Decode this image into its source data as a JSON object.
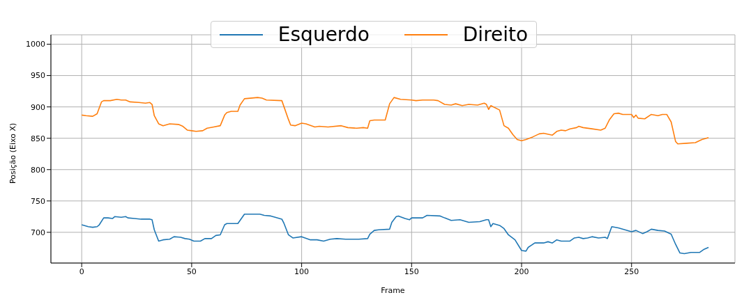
{
  "chart_data": {
    "type": "line",
    "xlabel": "Frame",
    "ylabel": "Posição (Eixo X)",
    "xlim": [
      -14,
      297
    ],
    "xticks": [
      0,
      50,
      100,
      150,
      200,
      250
    ],
    "ylim": [
      651,
      1015
    ],
    "yticks": [
      700,
      750,
      800,
      850,
      900,
      950,
      1000
    ],
    "grid": true,
    "legend": "top",
    "series": [
      {
        "name": "Esquerdo",
        "color": "#1f77b4",
        "x": [
          0,
          3,
          5,
          7,
          8,
          10,
          12,
          14,
          15,
          18,
          20,
          21,
          24,
          27,
          31,
          32,
          33,
          35,
          37,
          40,
          42,
          45,
          47,
          49,
          51,
          54,
          56,
          59,
          61,
          63,
          65,
          66,
          69,
          71,
          73,
          74,
          81,
          83,
          86,
          88,
          91,
          92,
          94,
          96,
          100,
          104,
          107,
          110,
          113,
          116,
          120,
          126,
          130,
          131,
          133,
          135,
          140,
          141,
          143,
          144,
          147,
          149,
          150,
          155,
          157,
          163,
          165,
          168,
          172,
          176,
          181,
          184,
          185,
          186,
          187,
          190,
          192,
          194,
          197,
          200,
          202,
          203,
          206,
          210,
          212,
          214,
          216,
          218,
          222,
          224,
          226,
          228,
          230,
          232,
          235,
          238,
          239,
          241,
          244,
          247,
          250,
          252,
          255,
          257,
          259,
          262,
          265,
          268,
          270,
          272,
          274,
          277,
          281,
          283,
          285
        ],
        "values": [
          712,
          709,
          708,
          709,
          712,
          723,
          723,
          722,
          725,
          724,
          725,
          723,
          722,
          721,
          721,
          720,
          704,
          686,
          688,
          689,
          693,
          692,
          690,
          689,
          686,
          686,
          690,
          690,
          695,
          696,
          712,
          714,
          714,
          714,
          724,
          729,
          729,
          727,
          726,
          724,
          721,
          714,
          696,
          691,
          693,
          688,
          688,
          686,
          689,
          690,
          689,
          689,
          690,
          697,
          703,
          704,
          705,
          716,
          725,
          726,
          722,
          720,
          723,
          723,
          727,
          726,
          723,
          719,
          720,
          716,
          717,
          720,
          720,
          709,
          714,
          711,
          706,
          696,
          688,
          671,
          670,
          676,
          683,
          683,
          685,
          683,
          688,
          686,
          686,
          691,
          692,
          690,
          691,
          693,
          691,
          692,
          690,
          709,
          707,
          704,
          701,
          703,
          698,
          701,
          705,
          703,
          702,
          697,
          681,
          667,
          666,
          668,
          668,
          673,
          676
        ]
      },
      {
        "name": "Direito",
        "color": "#ff7f0e",
        "x": [
          0,
          2,
          5,
          7,
          9,
          10,
          13,
          16,
          18,
          20,
          22,
          26,
          29,
          31,
          32,
          33,
          35,
          37,
          40,
          44,
          46,
          48,
          50,
          52,
          55,
          57,
          60,
          63,
          65,
          66,
          68,
          71,
          72,
          74,
          80,
          82,
          84,
          91,
          92,
          94,
          95,
          97,
          100,
          102,
          106,
          108,
          112,
          118,
          121,
          125,
          128,
          130,
          131,
          133,
          138,
          140,
          142,
          145,
          150,
          152,
          155,
          160,
          162,
          165,
          168,
          170,
          173,
          176,
          180,
          183,
          184,
          185,
          186,
          190,
          192,
          194,
          196,
          198,
          200,
          202,
          205,
          208,
          210,
          214,
          216,
          218,
          220,
          222,
          225,
          226,
          228,
          232,
          236,
          238,
          240,
          242,
          244,
          246,
          250,
          251,
          252,
          253,
          256,
          259,
          262,
          264,
          266,
          268,
          270,
          271,
          275,
          279,
          282,
          285
        ],
        "values": [
          887,
          886,
          885,
          889,
          908,
          910,
          910,
          912,
          911,
          911,
          908,
          907,
          906,
          907,
          904,
          886,
          873,
          870,
          873,
          872,
          869,
          863,
          862,
          861,
          862,
          866,
          868,
          870,
          887,
          891,
          893,
          893,
          903,
          913,
          915,
          914,
          911,
          910,
          900,
          880,
          871,
          870,
          874,
          873,
          868,
          869,
          868,
          870,
          867,
          866,
          867,
          866,
          878,
          879,
          879,
          905,
          915,
          912,
          911,
          910,
          911,
          911,
          910,
          904,
          903,
          905,
          902,
          904,
          903,
          906,
          904,
          896,
          902,
          895,
          870,
          866,
          856,
          848,
          846,
          848,
          852,
          857,
          858,
          855,
          861,
          863,
          862,
          865,
          867,
          869,
          867,
          865,
          863,
          866,
          880,
          889,
          890,
          888,
          888,
          883,
          887,
          882,
          881,
          888,
          886,
          888,
          888,
          876,
          845,
          841,
          842,
          843,
          848,
          851
        ]
      }
    ]
  }
}
